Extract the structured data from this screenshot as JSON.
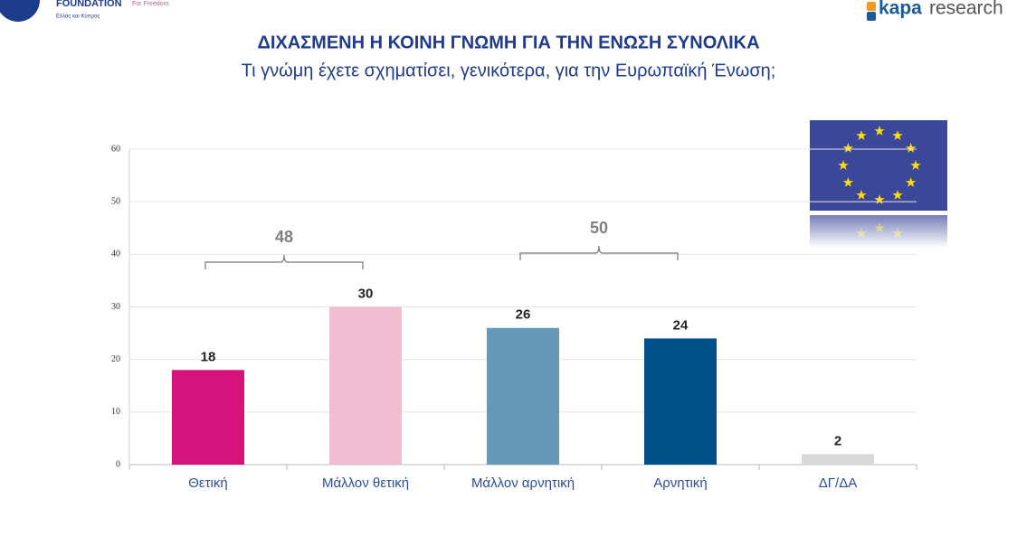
{
  "logos": {
    "left_name": "FOUNDATION",
    "left_tagline": "For Freedom.",
    "left_region": "Ελλάς και Κύπρος",
    "right_bold": "kapa",
    "right_light": "research"
  },
  "chart_data": {
    "type": "bar",
    "title": "ΔΙΧΑΣΜΕΝΗ Η ΚΟΙΝΗ ΓΝΩΜΗ ΓΙΑ ΤΗΝ ΕΝΩΣΗ ΣΥΝΟΛΙΚΑ",
    "subtitle": "Τι γνώμη έχετε σχηματίσει, γενικότερα, για την Ευρωπαϊκή Ένωση;",
    "categories": [
      "Θετική",
      "Μάλλον θετική",
      "Μάλλον αρνητική",
      "Αρνητική",
      "ΔΓ/ΔΑ"
    ],
    "values": [
      18,
      30,
      26,
      24,
      2
    ],
    "colors": [
      "#d6137c",
      "#f0bdd1",
      "#6598b9",
      "#00518a",
      "#d9d9d9"
    ],
    "ylim": [
      0,
      60
    ],
    "yticks": [
      0,
      10,
      20,
      30,
      40,
      50,
      60
    ],
    "grid": true,
    "annotations": [
      {
        "text": "48",
        "categories": [
          "Θετική",
          "Μάλλον θετική"
        ]
      },
      {
        "text": "50",
        "categories": [
          "Μάλλον αρνητική",
          "Αρνητική"
        ]
      }
    ]
  }
}
